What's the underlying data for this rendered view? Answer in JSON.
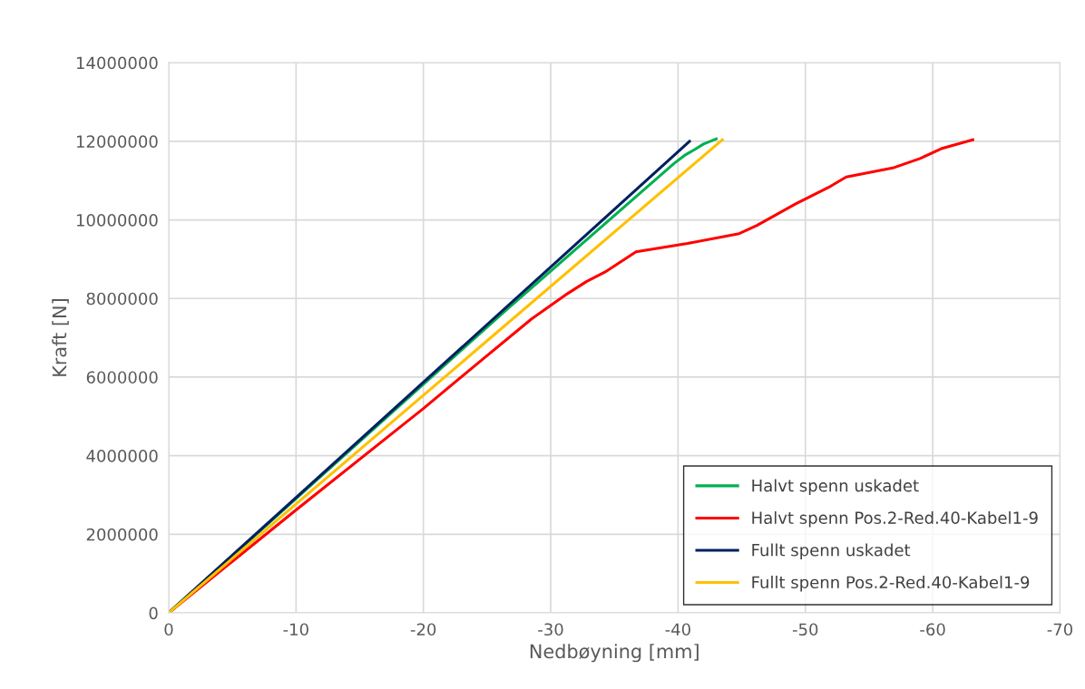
{
  "chart_data": {
    "type": "line",
    "xlabel": "Nedbøyning [mm]",
    "ylabel": "Kraft [N]",
    "xlim": [
      0,
      -70
    ],
    "xticks": [
      0,
      -10,
      -20,
      -30,
      -40,
      -50,
      -60,
      -70
    ],
    "ylim": [
      0,
      14000000
    ],
    "yticks": [
      0,
      2000000,
      4000000,
      6000000,
      8000000,
      10000000,
      12000000,
      14000000
    ],
    "grid": true,
    "legend": "bottom right",
    "marker": "none",
    "line_style": "solid",
    "series": [
      {
        "name": "Halvt spenn uskadet",
        "color": "#00b050",
        "x": [
          0,
          -26.65,
          -39.7,
          -40.6,
          -41.3,
          -42.0,
          -43.0
        ],
        "values": [
          0,
          7750000,
          11440000,
          11660000,
          11790000,
          11930000,
          12060000
        ]
      },
      {
        "name": "Halvt spenn Pos.2-Red.40-Kabel1-9",
        "color": "#ff0000",
        "x": [
          0,
          -10,
          -20,
          -24,
          -28.5,
          -31.35,
          -32.8,
          -34.25,
          -36.7,
          -40.75,
          -44.8,
          -46.2,
          -49.2,
          -52.0,
          -53.2,
          -56.85,
          -59.0,
          -60.66,
          -63.15
        ],
        "values": [
          0,
          2620000,
          5200000,
          6280000,
          7480000,
          8130000,
          8430000,
          8670000,
          9190000,
          9400000,
          9650000,
          9860000,
          10400000,
          10860000,
          11090000,
          11320000,
          11560000,
          11810000,
          12040000
        ]
      },
      {
        "name": "Fullt spenn uskadet",
        "color": "#002060",
        "x": [
          0,
          -40.9
        ],
        "values": [
          0,
          12000000
        ]
      },
      {
        "name": "Fullt spenn Pos.2-Red.40-Kabel1-9",
        "color": "#ffc000",
        "x": [
          0,
          -43.48
        ],
        "values": [
          0,
          12040000
        ]
      }
    ]
  }
}
